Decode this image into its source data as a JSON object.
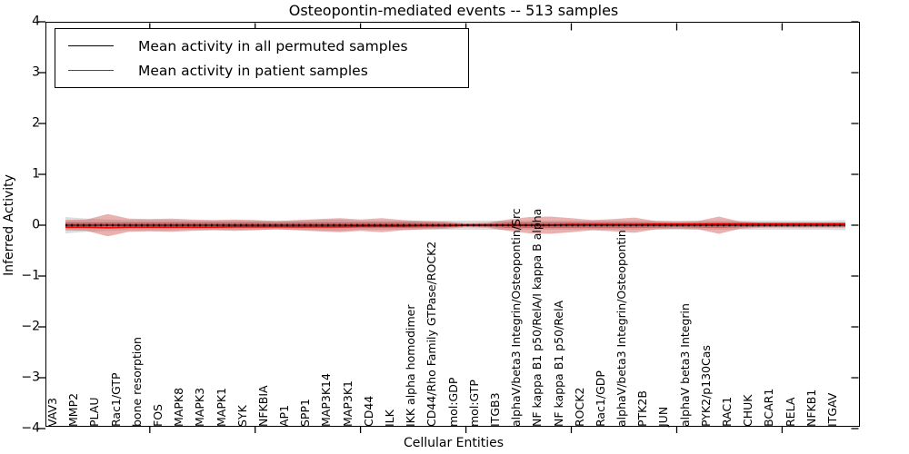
{
  "title": "Osteopontin-mediated events -- 513 samples",
  "axes": {
    "xlabel": "Cellular Entities",
    "ylabel": "Inferred Activity",
    "ytick_labels": [
      "4",
      "3",
      "2",
      "1",
      "0",
      "−1",
      "−2",
      "−3",
      "−4"
    ],
    "ytick_values": [
      4,
      3,
      2,
      1,
      0,
      -1,
      -2,
      -3,
      -4
    ],
    "ylim": [
      -4,
      4
    ],
    "x_major_tick_entities": [
      5,
      10,
      15,
      20,
      25,
      30,
      35
    ]
  },
  "legend": {
    "items": [
      {
        "label": "Mean activity in all permuted samples",
        "color": "#000000"
      },
      {
        "label": "Mean activity in patient samples",
        "color": "#ff0000"
      }
    ],
    "position": "upper left"
  },
  "colors": {
    "permuted_band": "#bbbbbb",
    "patient_band": "#cc4444",
    "patient_core": "#c03030",
    "permuted_mean_line": "#000000",
    "patient_mean_line": "#ff0000"
  },
  "chart_data": {
    "type": "violin",
    "title": "Osteopontin-mediated events -- 513 samples",
    "xlabel": "Cellular Entities",
    "ylabel": "Inferred Activity",
    "ylim": [
      -4,
      4
    ],
    "grid": false,
    "legend_position": "upper left",
    "categories": [
      "VAV3",
      "MMP2",
      "PLAU",
      "Rac1/GTP",
      "bone resorption",
      "FOS",
      "MAPK8",
      "MAPK3",
      "MAPK1",
      "SYK",
      "NFKBIA",
      "AP1",
      "SPP1",
      "MAP3K14",
      "MAP3K1",
      "CD44",
      "ILK",
      "IKK alpha homodimer",
      "CD44/Rho Family GTPase/ROCK2",
      "mol:GDP",
      "mol:GTP",
      "ITGB3",
      "alphaV/beta3 Integrin/Osteopontin/Src",
      "NF kappa B1 p50/RelA/I kappa B alpha",
      "NF kappa B1 p50/RelA",
      "ROCK2",
      "Rac1/GDP",
      "alphaV/beta3 Integrin/Osteopontin",
      "PTK2B",
      "JUN",
      "alphaV beta3 Integrin",
      "PYK2/p130Cas",
      "RAC1",
      "CHUK",
      "BCAR1",
      "RELA",
      "NFKB1",
      "ITGAV"
    ],
    "series": [
      {
        "name": "Mean activity in all permuted samples",
        "color": "#000000",
        "values": [
          0,
          0,
          0,
          0,
          0,
          0,
          0,
          0,
          0,
          0,
          0,
          0,
          0,
          0,
          0,
          0,
          0,
          0,
          0,
          0,
          0,
          0,
          0,
          0,
          0,
          0,
          0,
          0,
          0,
          0,
          0,
          0,
          0,
          0,
          0,
          0,
          0,
          0
        ]
      },
      {
        "name": "Mean activity in patient samples",
        "color": "#ff0000",
        "values": [
          -0.04,
          -0.04,
          -0.05,
          -0.04,
          -0.04,
          -0.04,
          -0.04,
          -0.04,
          -0.03,
          -0.03,
          -0.03,
          -0.03,
          -0.03,
          -0.03,
          -0.02,
          -0.02,
          -0.02,
          -0.01,
          -0.01,
          0,
          0,
          0,
          0,
          0,
          0.01,
          0.01,
          0.01,
          0.01,
          0.02,
          0.02,
          0.02,
          0.02,
          0.03,
          0.03,
          0.03,
          0.03,
          0.03,
          0.03
        ]
      }
    ],
    "patient_band_halfwidth": [
      0.1,
      0.11,
      0.22,
      0.13,
      0.12,
      0.13,
      0.11,
      0.1,
      0.11,
      0.1,
      0.08,
      0.1,
      0.12,
      0.14,
      0.11,
      0.14,
      0.1,
      0.08,
      0.07,
      0.04,
      0.05,
      0.11,
      0.16,
      0.17,
      0.14,
      0.1,
      0.12,
      0.15,
      0.08,
      0.07,
      0.08,
      0.17,
      0.07,
      0.05,
      0.05,
      0.05,
      0.05,
      0.05
    ],
    "permuted_band_halfwidth": [
      0.16,
      0.13,
      0.11,
      0.1,
      0.1,
      0.1,
      0.09,
      0.09,
      0.09,
      0.09,
      0.09,
      0.09,
      0.1,
      0.11,
      0.09,
      0.09,
      0.09,
      0.09,
      0.09,
      0.09,
      0.09,
      0.09,
      0.09,
      0.09,
      0.09,
      0.09,
      0.09,
      0.09,
      0.09,
      0.09,
      0.09,
      0.09,
      0.09,
      0.09,
      0.09,
      0.09,
      0.09,
      0.1
    ]
  }
}
